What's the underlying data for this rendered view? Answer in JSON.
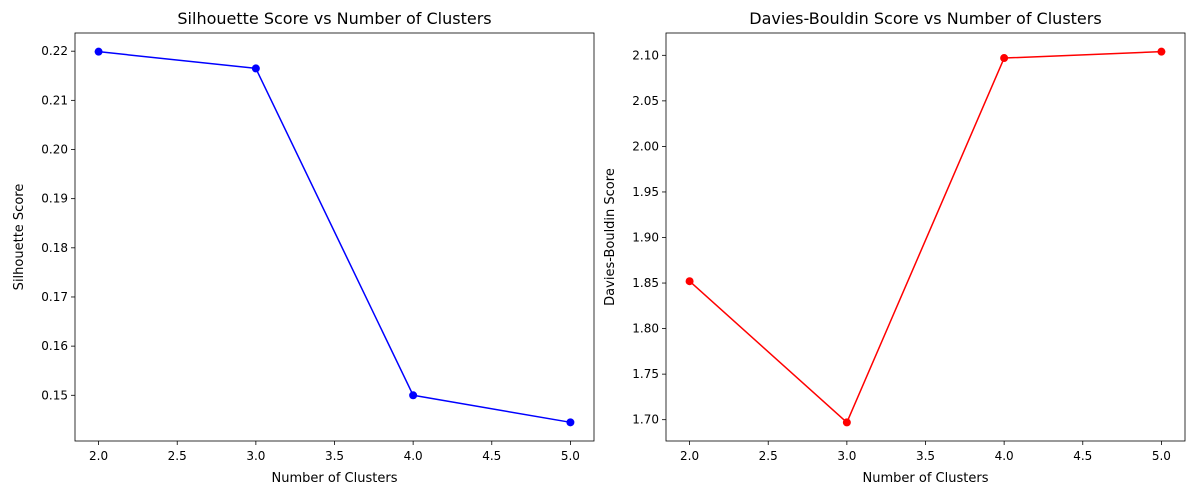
{
  "chart_data": [
    {
      "type": "line",
      "title": "Silhouette Score vs Number of Clusters",
      "xlabel": "Number of Clusters",
      "ylabel": "Silhouette Score",
      "x": [
        2,
        3,
        4,
        5
      ],
      "series": [
        {
          "values": [
            0.2199,
            0.2165,
            0.15,
            0.1445
          ],
          "color": "#0000ff",
          "marker": "circle"
        }
      ],
      "xlim": [
        1.85,
        5.15
      ],
      "ylim": [
        0.1407,
        0.2237
      ],
      "xticks": [
        2.0,
        2.5,
        3.0,
        3.5,
        4.0,
        4.5,
        5.0
      ],
      "xtick_labels": [
        "2.0",
        "2.5",
        "3.0",
        "3.5",
        "4.0",
        "4.5",
        "5.0"
      ],
      "yticks": [
        0.15,
        0.16,
        0.17,
        0.18,
        0.19,
        0.2,
        0.21,
        0.22
      ],
      "ytick_labels": [
        "0.15",
        "0.16",
        "0.17",
        "0.18",
        "0.19",
        "0.20",
        "0.21",
        "0.22"
      ],
      "grid": false,
      "legend": "none"
    },
    {
      "type": "line",
      "title": "Davies-Bouldin Score vs Number of Clusters",
      "xlabel": "Number of Clusters",
      "ylabel": "Davies-Bouldin Score",
      "x": [
        2,
        3,
        4,
        5
      ],
      "series": [
        {
          "values": [
            1.852,
            1.697,
            2.097,
            2.104
          ],
          "color": "#ff0000",
          "marker": "circle"
        }
      ],
      "xlim": [
        1.85,
        5.15
      ],
      "ylim": [
        1.6766,
        2.1245
      ],
      "xticks": [
        2.0,
        2.5,
        3.0,
        3.5,
        4.0,
        4.5,
        5.0
      ],
      "xtick_labels": [
        "2.0",
        "2.5",
        "3.0",
        "3.5",
        "4.0",
        "4.5",
        "5.0"
      ],
      "yticks": [
        1.7,
        1.75,
        1.8,
        1.85,
        1.9,
        1.95,
        2.0,
        2.05,
        2.1
      ],
      "ytick_labels": [
        "1.70",
        "1.75",
        "1.80",
        "1.85",
        "1.90",
        "1.95",
        "2.00",
        "2.05",
        "2.10"
      ],
      "grid": false,
      "legend": "none"
    }
  ]
}
